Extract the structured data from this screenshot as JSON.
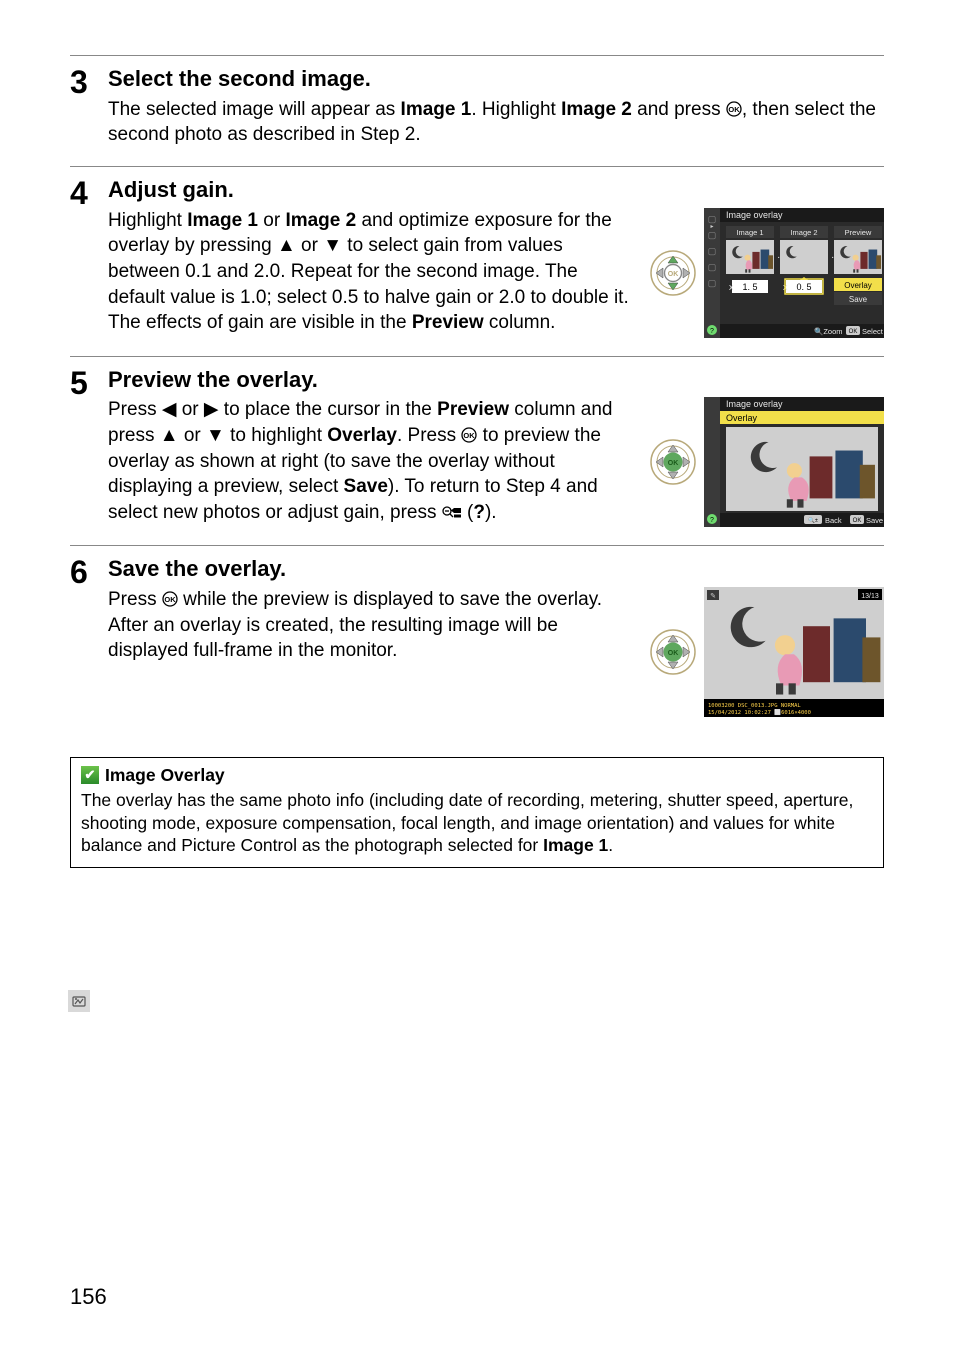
{
  "steps": [
    {
      "num": "3",
      "title": "Select the second image.",
      "body_html": "The selected image will appear as <b>Image 1</b>.  Highlight <b>Image 2</b> and press <span class='glyph-ok'></span>, then select the second photo as described in Step 2."
    },
    {
      "num": "4",
      "title": "Adjust gain.",
      "body_html": "Highlight <b>Image 1</b> or <b>Image 2</b> and optimize exposure for the overlay by pressing ▲ or ▼ to select gain from values between 0.1 and 2.0.  Repeat for the second image.  The default value is 1.0; select 0.5 to halve gain or 2.0 to double it.  The effects of gain are visible in the <b>Preview</b> column."
    },
    {
      "num": "5",
      "title": "Preview the overlay.",
      "body_html": "Press ◀ or ▶ to place the cursor in the <b>Preview</b> column and press ▲ or ▼ to highlight <b>Overlay</b>.  Press <span class='glyph-ok'></span> to preview the overlay as shown at right (to save the overlay without displaying a preview, select <b>Save</b>).  To return to Step 4 and select new photos or adjust gain, press <span class='glyph-qmenu'></span> (<b>?</b>)."
    },
    {
      "num": "6",
      "title": "Save the overlay.",
      "body_html": "Press <span class='glyph-ok'></span> while the preview is displayed to save the overlay.  After an overlay is created, the resulting image will be displayed full-frame in the monitor."
    }
  ],
  "note": {
    "title": "Image Overlay",
    "body_html": "The overlay has the same photo info (including date of recording, metering, shutter speed, aperture, shooting mode, exposure compensation, focal length, and image orientation) and values for white balance and Picture Control as the photograph selected for <b>Image 1</b>."
  },
  "lcd_step4": {
    "title": "Image overlay",
    "col_labels": [
      "Image 1",
      "Image 2",
      "Preview"
    ],
    "gain1": "1. 5",
    "gain2": "0. 5",
    "side_labels": [
      "Overlay",
      "Save"
    ],
    "footer_left": "Zoom",
    "footer_right": "Select",
    "footer_left_icon": "🔍",
    "footer_right_icon": "OK",
    "colors": {
      "bg": "#2b2b2b",
      "header": "#1a1a1a",
      "text": "#e6e6e6",
      "active_bg": "#f2df4a",
      "active_text": "#000",
      "thumb_bg": "#3a3a3a",
      "gain_box": "#ffffff",
      "gain_text": "#000",
      "help": "#6fdc6f",
      "accent": "#3a3a3a"
    }
  },
  "lcd_step5": {
    "title": "Image overlay",
    "subtitle": "Overlay",
    "footer_left": "Back",
    "footer_right": "Save",
    "footer_left_icon": "🔍±",
    "footer_right_icon": "OK",
    "colors": {
      "bg": "#2b2b2b",
      "header": "#1a1a1a",
      "text": "#e6e6e6",
      "subtitle_bg": "#f2df4a",
      "subtitle_text": "#000",
      "preview_bg": "#d8d8d8",
      "help": "#6fdc6f"
    }
  },
  "lcd_step6": {
    "badge": "13/13",
    "footer_line1": "10003200   DSC_0013.JPG          NORMAL",
    "footer_line2": "15/04/2012 10:02:27              ⬜6016×4000",
    "colors": {
      "bg": "#000000",
      "preview_bg": "#c8c8c8",
      "text": "#e6e6e6",
      "date": "#ffd24a"
    }
  },
  "ok_button": {
    "colors": {
      "ring": "#b8a97a",
      "inner": "#333",
      "ok_ring": "#888",
      "ok_text": "#b8a97a",
      "arrow_green": "#5fa85f",
      "arrow_gray": "#b0b0b0"
    }
  },
  "page_number": "156"
}
